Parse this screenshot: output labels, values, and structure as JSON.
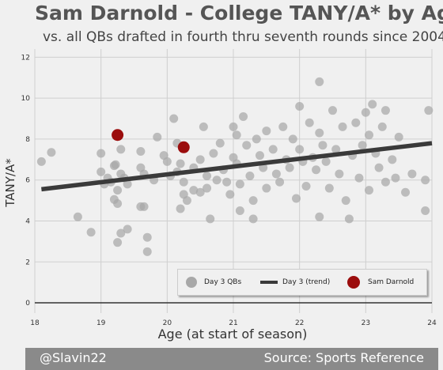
{
  "title": "Sam Darnold - College TANY/A* by Age",
  "subtitle": "vs. all QBs drafted in fourth thru seventh rounds since 2004",
  "footer": {
    "left": "@Slavin22",
    "right": "Source: Sports Reference"
  },
  "colors": {
    "day3": "#a8a8a8",
    "trend": "#3a3a3a",
    "darnold": "#9b0d0d",
    "grid": "#cfcfcf",
    "background": "#f0f0f0"
  },
  "chart_data": {
    "type": "scatter",
    "xlabel": "Age (at start of season)",
    "ylabel": "TANY/A*",
    "xlim": [
      18,
      24
    ],
    "ylim": [
      -0.5,
      12.4
    ],
    "x_ticks": [
      "18",
      "19",
      "20",
      "21",
      "22",
      "23",
      "24"
    ],
    "y_ticks": [
      "0",
      "2",
      "4",
      "6",
      "8",
      "10",
      "12"
    ],
    "grid": true,
    "legend": "bottom-right",
    "legend_entries": [
      "Day 3 QBs",
      "Day 3 (trend)",
      "Sam Darnold"
    ],
    "series": [
      {
        "name": "Day 3 QBs",
        "points": [
          [
            18.1,
            6.9
          ],
          [
            18.25,
            7.35
          ],
          [
            18.65,
            4.2
          ],
          [
            18.85,
            3.45
          ],
          [
            19.0,
            7.3
          ],
          [
            19.0,
            6.4
          ],
          [
            19.05,
            5.8
          ],
          [
            19.1,
            6.1
          ],
          [
            19.15,
            5.9
          ],
          [
            19.2,
            6.7
          ],
          [
            19.22,
            6.75
          ],
          [
            19.25,
            5.5
          ],
          [
            19.2,
            5.05
          ],
          [
            19.25,
            4.85
          ],
          [
            19.3,
            7.5
          ],
          [
            19.3,
            6.3
          ],
          [
            19.35,
            6.1
          ],
          [
            19.4,
            5.8
          ],
          [
            19.25,
            2.95
          ],
          [
            19.3,
            3.4
          ],
          [
            19.4,
            3.6
          ],
          [
            19.6,
            7.4
          ],
          [
            19.6,
            6.6
          ],
          [
            19.65,
            6.3
          ],
          [
            19.6,
            4.7
          ],
          [
            19.65,
            4.7
          ],
          [
            19.7,
            3.2
          ],
          [
            19.7,
            2.5
          ],
          [
            19.8,
            6.0
          ],
          [
            19.85,
            8.1
          ],
          [
            19.95,
            7.2
          ],
          [
            20.0,
            6.9
          ],
          [
            20.05,
            6.2
          ],
          [
            20.1,
            9.0
          ],
          [
            20.15,
            7.8
          ],
          [
            20.15,
            6.4
          ],
          [
            20.2,
            6.8
          ],
          [
            20.25,
            5.9
          ],
          [
            20.25,
            5.3
          ],
          [
            20.3,
            5.0
          ],
          [
            20.2,
            4.6
          ],
          [
            20.4,
            6.6
          ],
          [
            20.4,
            5.5
          ],
          [
            20.5,
            7.0
          ],
          [
            20.5,
            5.4
          ],
          [
            20.55,
            8.6
          ],
          [
            20.6,
            6.2
          ],
          [
            20.6,
            5.6
          ],
          [
            20.65,
            4.1
          ],
          [
            20.7,
            7.3
          ],
          [
            20.75,
            6.0
          ],
          [
            20.8,
            7.8
          ],
          [
            20.85,
            6.5
          ],
          [
            20.9,
            5.9
          ],
          [
            20.95,
            5.3
          ],
          [
            21.0,
            8.6
          ],
          [
            21.0,
            7.1
          ],
          [
            21.05,
            8.2
          ],
          [
            21.05,
            6.8
          ],
          [
            21.1,
            5.8
          ],
          [
            21.1,
            4.5
          ],
          [
            21.15,
            9.1
          ],
          [
            21.2,
            7.7
          ],
          [
            21.25,
            6.2
          ],
          [
            21.3,
            5.0
          ],
          [
            21.3,
            4.1
          ],
          [
            21.35,
            8.0
          ],
          [
            21.4,
            7.2
          ],
          [
            21.45,
            6.6
          ],
          [
            21.5,
            5.6
          ],
          [
            21.5,
            8.4
          ],
          [
            21.6,
            7.5
          ],
          [
            21.65,
            6.3
          ],
          [
            21.7,
            5.9
          ],
          [
            21.75,
            8.6
          ],
          [
            21.8,
            7.0
          ],
          [
            21.85,
            6.6
          ],
          [
            21.9,
            8.0
          ],
          [
            21.95,
            5.1
          ],
          [
            22.0,
            9.6
          ],
          [
            22.0,
            7.5
          ],
          [
            22.05,
            6.9
          ],
          [
            22.1,
            5.7
          ],
          [
            22.15,
            8.8
          ],
          [
            22.2,
            7.1
          ],
          [
            22.25,
            6.5
          ],
          [
            22.3,
            10.8
          ],
          [
            22.3,
            8.3
          ],
          [
            22.3,
            4.2
          ],
          [
            22.35,
            7.7
          ],
          [
            22.4,
            6.9
          ],
          [
            22.45,
            5.6
          ],
          [
            22.5,
            9.4
          ],
          [
            22.55,
            7.5
          ],
          [
            22.6,
            6.3
          ],
          [
            22.65,
            8.6
          ],
          [
            22.7,
            5.0
          ],
          [
            22.75,
            4.1
          ],
          [
            22.8,
            7.2
          ],
          [
            22.85,
            8.8
          ],
          [
            22.9,
            6.1
          ],
          [
            22.95,
            7.7
          ],
          [
            23.0,
            9.3
          ],
          [
            23.05,
            8.2
          ],
          [
            23.05,
            5.5
          ],
          [
            23.1,
            9.7
          ],
          [
            23.15,
            7.3
          ],
          [
            23.2,
            6.6
          ],
          [
            23.25,
            8.6
          ],
          [
            23.3,
            5.9
          ],
          [
            23.3,
            9.4
          ],
          [
            23.4,
            7.0
          ],
          [
            23.45,
            6.1
          ],
          [
            23.5,
            8.1
          ],
          [
            23.6,
            5.4
          ],
          [
            23.7,
            6.3
          ],
          [
            23.9,
            6.0
          ],
          [
            23.95,
            9.4
          ],
          [
            23.9,
            4.5
          ]
        ]
      },
      {
        "name": "Day 3 (trend)",
        "points": [
          [
            18.1,
            5.55
          ],
          [
            24.0,
            7.8
          ]
        ]
      },
      {
        "name": "Sam Darnold",
        "points": [
          [
            19.25,
            8.2
          ],
          [
            20.25,
            7.6
          ]
        ]
      }
    ]
  }
}
